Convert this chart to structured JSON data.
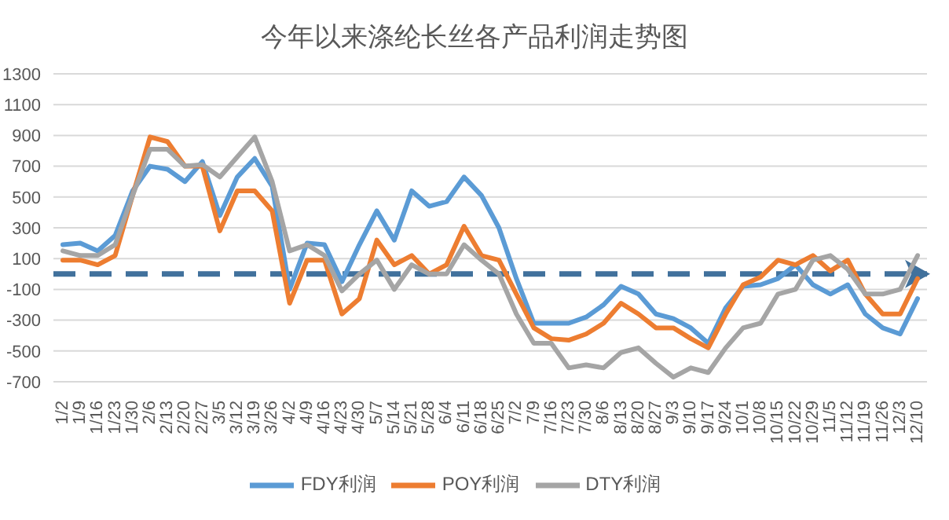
{
  "chart_data": {
    "type": "line",
    "title": "今年以来涤纶长丝各产品利润走势图",
    "categories": [
      "1/2",
      "1/9",
      "1/16",
      "1/23",
      "1/30",
      "2/6",
      "2/13",
      "2/20",
      "2/27",
      "3/5",
      "3/12",
      "3/19",
      "3/26",
      "4/2",
      "4/9",
      "4/16",
      "4/23",
      "4/30",
      "5/7",
      "5/14",
      "5/21",
      "5/28",
      "6/4",
      "6/11",
      "6/18",
      "6/25",
      "7/2",
      "7/9",
      "7/16",
      "7/23",
      "7/30",
      "8/6",
      "8/13",
      "8/20",
      "8/27",
      "9/3",
      "9/10",
      "9/17",
      "9/24",
      "10/1",
      "10/8",
      "10/15",
      "10/22",
      "10/29",
      "11/5",
      "11/12",
      "11/19",
      "11/26",
      "12/3",
      "12/10"
    ],
    "series": [
      {
        "name": "FDY利润",
        "color": "#5b9bd5",
        "values": [
          190,
          200,
          150,
          250,
          540,
          700,
          680,
          600,
          730,
          380,
          630,
          750,
          570,
          -100,
          200,
          190,
          -50,
          190,
          410,
          220,
          540,
          440,
          470,
          630,
          510,
          300,
          -30,
          -320,
          -320,
          -320,
          -280,
          -200,
          -80,
          -130,
          -260,
          -290,
          -350,
          -450,
          -220,
          -80,
          -70,
          -30,
          60,
          -70,
          -130,
          -70,
          -260,
          -350,
          -390,
          -160
        ]
      },
      {
        "name": "POY利润",
        "color": "#ed7d31",
        "values": [
          90,
          90,
          60,
          120,
          510,
          890,
          860,
          700,
          700,
          280,
          540,
          540,
          410,
          -190,
          90,
          90,
          -260,
          -160,
          220,
          60,
          120,
          0,
          60,
          310,
          120,
          90,
          -130,
          -350,
          -420,
          -430,
          -390,
          -320,
          -190,
          -260,
          -350,
          -350,
          -420,
          -480,
          -260,
          -70,
          -20,
          90,
          60,
          120,
          20,
          90,
          -130,
          -260,
          -260,
          -30
        ]
      },
      {
        "name": "DTY利润",
        "color": "#a5a5a5",
        "values": [
          150,
          120,
          120,
          190,
          510,
          810,
          810,
          700,
          710,
          630,
          760,
          890,
          600,
          150,
          190,
          120,
          -110,
          0,
          90,
          -100,
          60,
          0,
          0,
          190,
          90,
          0,
          -260,
          -450,
          -450,
          -610,
          -590,
          -610,
          -510,
          -480,
          -580,
          -670,
          -610,
          -640,
          -480,
          -350,
          -320,
          -130,
          -100,
          90,
          120,
          30,
          -130,
          -130,
          -100,
          120
        ]
      }
    ],
    "ylim": [
      -700,
      1300
    ],
    "yticks": [
      -700,
      -500,
      -300,
      -100,
      100,
      300,
      500,
      700,
      900,
      1100,
      1300
    ],
    "grid": "y",
    "legend": "bottom",
    "marker": "none",
    "line_style": "solid",
    "ref_lines": [
      {
        "axis": "y",
        "value": 0,
        "color": "#41719c",
        "line_style": "dashed"
      }
    ]
  }
}
